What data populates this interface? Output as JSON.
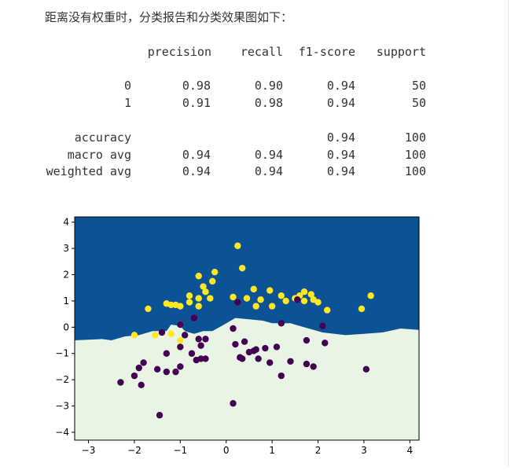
{
  "intro_text": "距离没有权重时，分类报告和分类效果图如下：",
  "report": {
    "headers": [
      "precision",
      "recall",
      "f1-score",
      "support"
    ],
    "rows": [
      {
        "label": "0",
        "precision": "0.98",
        "recall": "0.90",
        "f1": "0.94",
        "support": "50"
      },
      {
        "label": "1",
        "precision": "0.91",
        "recall": "0.98",
        "f1": "0.94",
        "support": "50"
      },
      {
        "label": "accuracy",
        "precision": "",
        "recall": "",
        "f1": "0.94",
        "support": "100"
      },
      {
        "label": "macro avg",
        "precision": "0.94",
        "recall": "0.94",
        "f1": "0.94",
        "support": "100"
      },
      {
        "label": "weighted avg",
        "precision": "0.94",
        "recall": "0.94",
        "f1": "0.94",
        "support": "100"
      }
    ]
  },
  "chart_data": {
    "type": "scatter",
    "xlim": [
      -3.3,
      4.2
    ],
    "ylim": [
      -4.3,
      4.2
    ],
    "x_ticks": [
      -3,
      -2,
      -1,
      0,
      1,
      2,
      3,
      4
    ],
    "y_ticks": [
      4,
      3,
      2,
      1,
      0,
      -1,
      -2,
      -3,
      -4
    ],
    "colors": {
      "region_class1": "#0b5394",
      "region_class0": "#e8f5e4",
      "point_class1": "#fde725",
      "point_class0": "#440154"
    },
    "decision_boundary": [
      [
        -3.3,
        -0.5
      ],
      [
        -2.7,
        -0.45
      ],
      [
        -2.5,
        -0.5
      ],
      [
        -2.2,
        -0.35
      ],
      [
        -1.9,
        -0.3
      ],
      [
        -1.6,
        -0.15
      ],
      [
        -1.3,
        -0.15
      ],
      [
        -1.2,
        0.1
      ],
      [
        -1.0,
        0.05
      ],
      [
        -0.9,
        -0.15
      ],
      [
        -0.7,
        -0.25
      ],
      [
        -0.5,
        -0.15
      ],
      [
        -0.3,
        -0.15
      ],
      [
        -0.1,
        0.05
      ],
      [
        0.2,
        0.35
      ],
      [
        0.5,
        0.3
      ],
      [
        0.8,
        0.25
      ],
      [
        1.0,
        0.15
      ],
      [
        1.4,
        0.15
      ],
      [
        1.6,
        0.05
      ],
      [
        1.8,
        -0.05
      ],
      [
        2.1,
        -0.2
      ],
      [
        2.6,
        -0.3
      ],
      [
        3.0,
        -0.25
      ],
      [
        3.4,
        -0.2
      ],
      [
        3.8,
        -0.05
      ],
      [
        4.2,
        -0.1
      ]
    ],
    "series": [
      {
        "class": "1",
        "points": [
          [
            0.25,
            3.1
          ],
          [
            0.35,
            2.25
          ],
          [
            -0.6,
            1.95
          ],
          [
            -0.25,
            2.1
          ],
          [
            -0.3,
            1.75
          ],
          [
            -0.5,
            1.55
          ],
          [
            -0.45,
            1.35
          ],
          [
            -0.8,
            1.2
          ],
          [
            -1.3,
            0.9
          ],
          [
            -1.2,
            0.85
          ],
          [
            -1.0,
            0.8
          ],
          [
            -1.7,
            0.7
          ],
          [
            -0.8,
            0.95
          ],
          [
            -0.35,
            1.1
          ],
          [
            -0.6,
            0.8
          ],
          [
            0.15,
            1.15
          ],
          [
            0.45,
            1.1
          ],
          [
            0.6,
            1.45
          ],
          [
            0.75,
            1.05
          ],
          [
            0.95,
            1.4
          ],
          [
            1.0,
            0.8
          ],
          [
            0.65,
            0.8
          ],
          [
            1.2,
            1.2
          ],
          [
            1.3,
            1.0
          ],
          [
            1.5,
            1.1
          ],
          [
            1.6,
            1.2
          ],
          [
            1.7,
            1.35
          ],
          [
            1.85,
            1.25
          ],
          [
            1.9,
            1.05
          ],
          [
            2.0,
            0.95
          ],
          [
            1.7,
            1.0
          ],
          [
            2.2,
            0.65
          ],
          [
            2.95,
            0.7
          ],
          [
            3.15,
            1.2
          ],
          [
            -2.0,
            -0.3
          ],
          [
            -1.55,
            -0.3
          ],
          [
            -1.2,
            -0.25
          ],
          [
            -1.0,
            -0.5
          ],
          [
            -1.1,
            0.85
          ],
          [
            -1.0,
            0.1
          ],
          [
            -0.6,
            1.1
          ]
        ]
      },
      {
        "class": "0",
        "points": [
          [
            -0.7,
            0.35
          ],
          [
            -1.0,
            0.1
          ],
          [
            -1.4,
            -0.2
          ],
          [
            -0.9,
            -0.3
          ],
          [
            -0.6,
            -0.45
          ],
          [
            -0.45,
            -0.45
          ],
          [
            -0.55,
            -0.7
          ],
          [
            -1.0,
            -0.75
          ],
          [
            -0.75,
            -1.0
          ],
          [
            -1.3,
            -1.0
          ],
          [
            -0.55,
            -1.2
          ],
          [
            -0.45,
            -1.2
          ],
          [
            -0.65,
            -1.25
          ],
          [
            -1.0,
            -1.5
          ],
          [
            -1.3,
            -1.7
          ],
          [
            -1.5,
            -1.6
          ],
          [
            -1.8,
            -1.35
          ],
          [
            -1.9,
            -1.55
          ],
          [
            -2.0,
            -1.85
          ],
          [
            -1.1,
            -1.7
          ],
          [
            -1.85,
            -2.2
          ],
          [
            -2.3,
            -2.1
          ],
          [
            -1.45,
            -3.35
          ],
          [
            0.15,
            -0.05
          ],
          [
            0.2,
            -0.65
          ],
          [
            0.4,
            -0.55
          ],
          [
            0.5,
            -0.95
          ],
          [
            0.65,
            -0.85
          ],
          [
            0.85,
            -0.8
          ],
          [
            0.3,
            -1.15
          ],
          [
            0.35,
            -1.2
          ],
          [
            0.7,
            -1.2
          ],
          [
            0.95,
            -1.35
          ],
          [
            1.1,
            -0.75
          ],
          [
            1.2,
            -1.85
          ],
          [
            1.4,
            -1.3
          ],
          [
            1.75,
            -0.5
          ],
          [
            1.75,
            -1.4
          ],
          [
            1.9,
            -1.5
          ],
          [
            2.1,
            0.05
          ],
          [
            2.15,
            -0.6
          ],
          [
            1.2,
            0.15
          ],
          [
            0.25,
            0.95
          ],
          [
            1.55,
            1.05
          ],
          [
            3.05,
            -1.6
          ],
          [
            0.15,
            -2.9
          ],
          [
            0.6,
            -0.9
          ]
        ]
      }
    ]
  }
}
